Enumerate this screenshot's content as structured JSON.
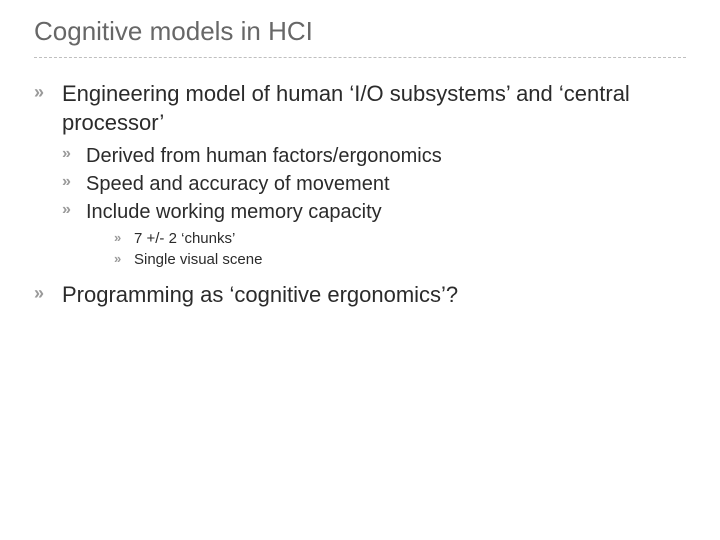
{
  "title": "Cognitive models in HCI",
  "bullet_glyph": "»",
  "colors": {
    "title": "#676767",
    "text": "#2b2b2b",
    "bullet": "#9a9a9a",
    "divider": "#bfbfbf",
    "background": "#ffffff"
  },
  "font_sizes": {
    "title": 26,
    "level1": 22,
    "level2": 20,
    "level3": 15
  },
  "items": [
    {
      "text": "Engineering model of human ‘I/O subsystems’ and ‘central processor’",
      "children": [
        {
          "text": "Derived from human factors/ergonomics"
        },
        {
          "text": "Speed and accuracy of movement"
        },
        {
          "text": "Include working memory capacity",
          "children": [
            {
              "text": "7 +/- 2 ‘chunks’"
            },
            {
              "text": "Single visual scene"
            }
          ]
        }
      ]
    },
    {
      "text": "Programming as ‘cognitive ergonomics’?"
    }
  ]
}
